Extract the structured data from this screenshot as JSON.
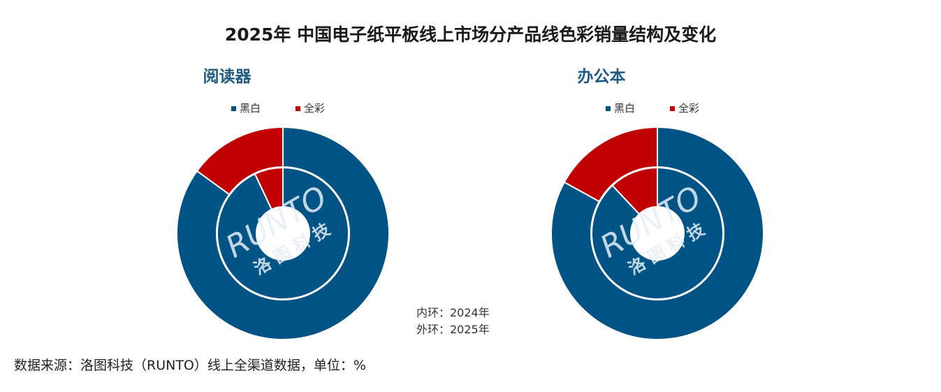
{
  "title": "2025年 中国电子纸平板线上市场分产品线色彩销量结构及变化",
  "annotation": {
    "inner": "内环：2024年",
    "outer": "外环：2025年"
  },
  "footer": "数据来源：洛图科技（RUNTO）线上全渠道数据，单位：%",
  "watermark": {
    "logo": "RUNTO",
    "cn": "洛 图 科 技"
  },
  "colors": {
    "bw": "#005385",
    "color": "#c00000",
    "ring_border": "#ffffff"
  },
  "chart_data": [
    {
      "type": "donut",
      "title": "阅读器",
      "legend": [
        "黑白",
        "全彩"
      ],
      "categories": [
        "黑白",
        "全彩"
      ],
      "series": [
        {
          "name": "2024年",
          "ring": "inner",
          "values": [
            93,
            7
          ]
        },
        {
          "name": "2025年",
          "ring": "outer",
          "values": [
            85,
            15
          ]
        }
      ]
    },
    {
      "type": "donut",
      "title": "办公本",
      "legend": [
        "黑白",
        "全彩"
      ],
      "categories": [
        "黑白",
        "全彩"
      ],
      "series": [
        {
          "name": "2024年",
          "ring": "inner",
          "values": [
            88,
            12
          ]
        },
        {
          "name": "2025年",
          "ring": "outer",
          "values": [
            83,
            17
          ]
        }
      ]
    }
  ]
}
